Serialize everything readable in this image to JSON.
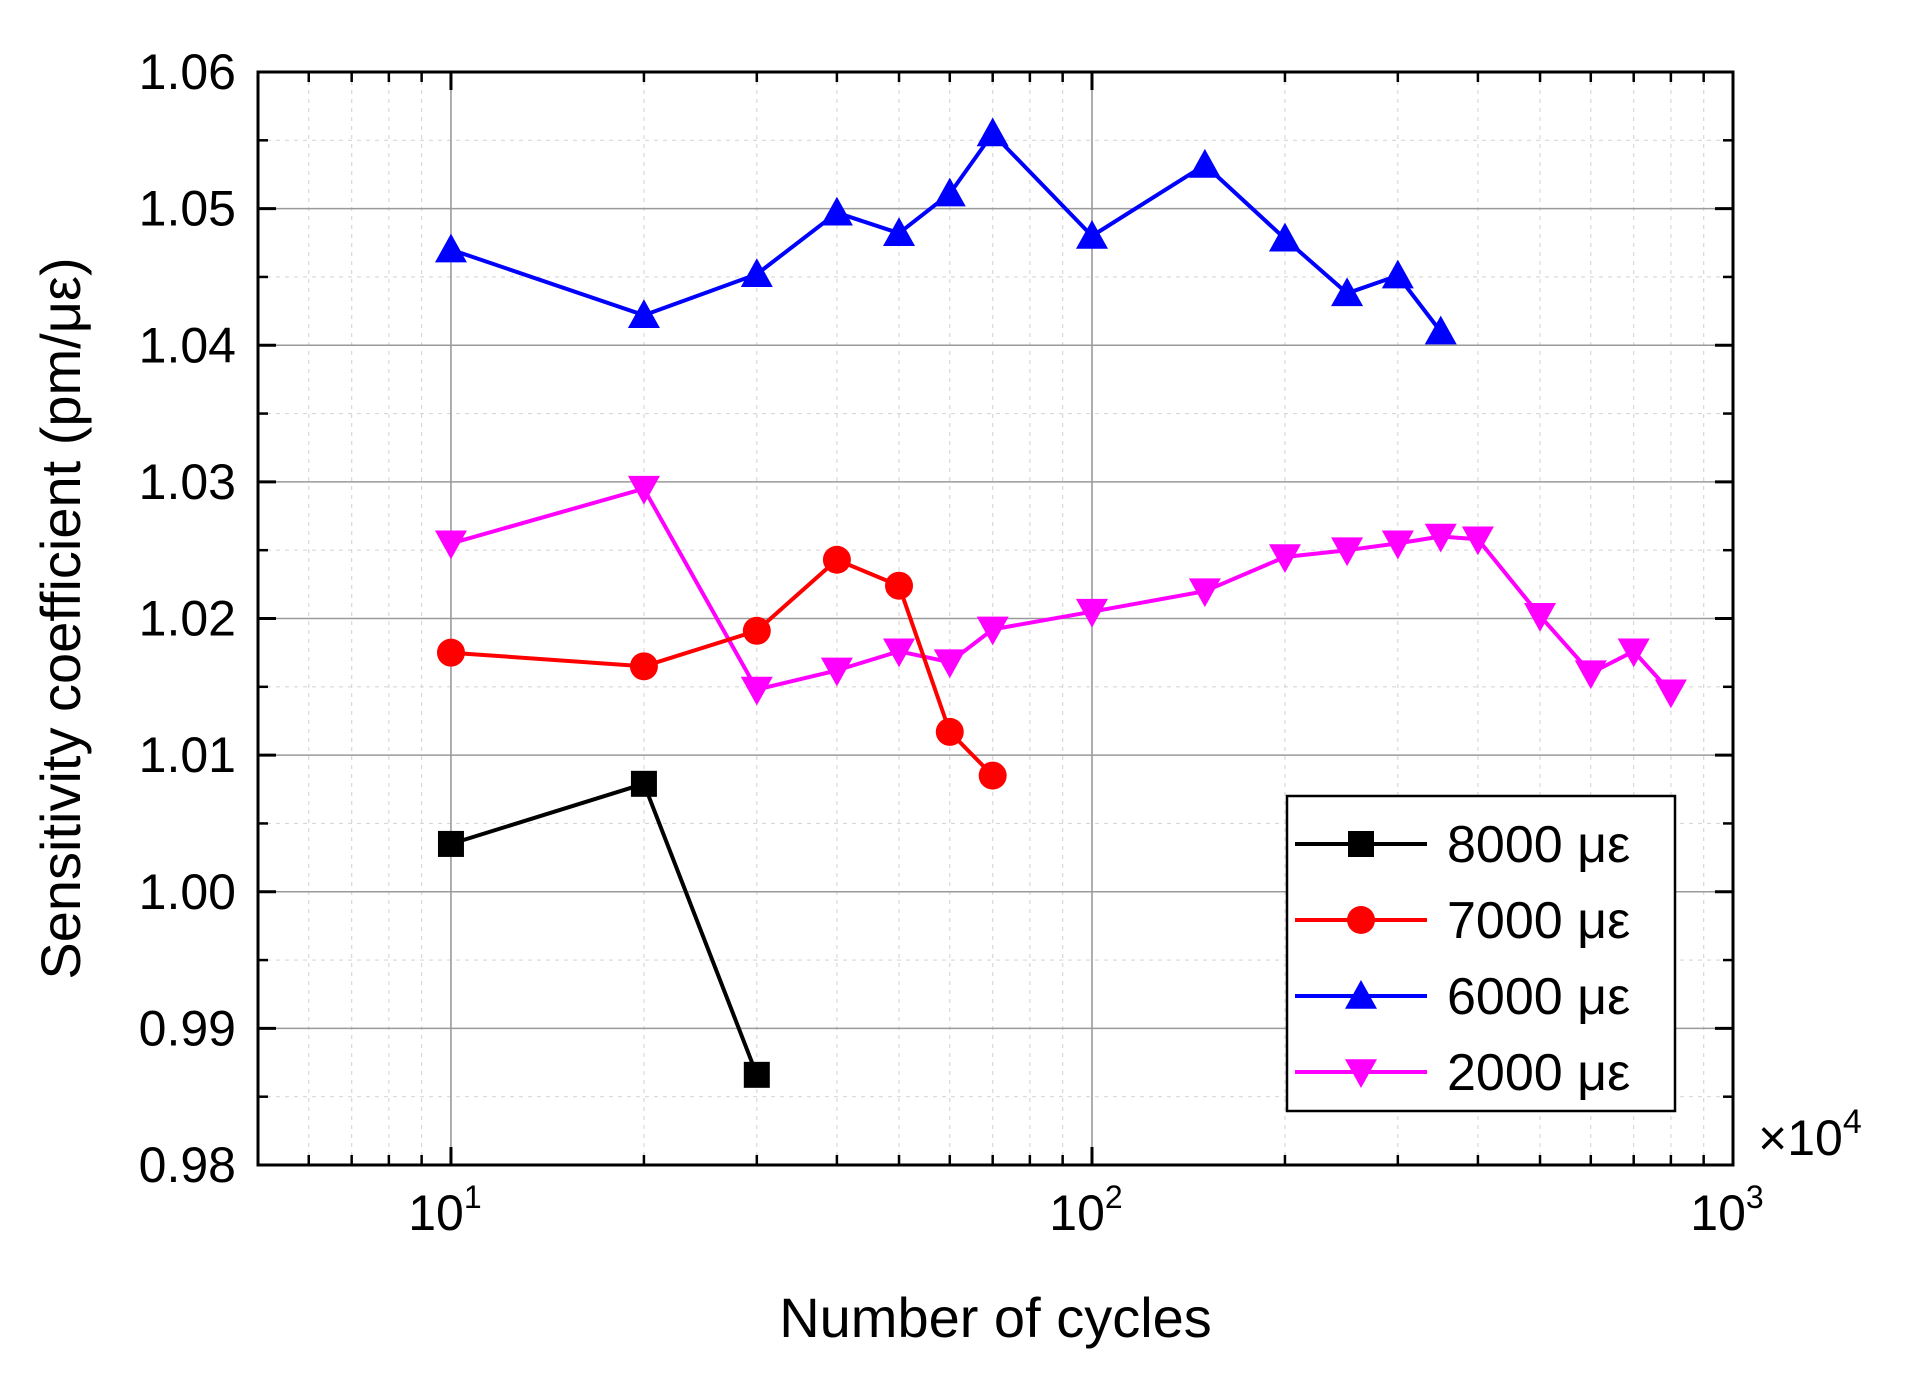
{
  "chart_data": {
    "type": "line",
    "title": "",
    "xlabel": "Number of cycles",
    "ylabel": "Sensitivity coefficient (pm/με)",
    "x_scale": "log",
    "x_multiplier_label": "×10",
    "x_multiplier_exponent": "4",
    "xlim": [
      5,
      1000
    ],
    "ylim": [
      0.98,
      1.06
    ],
    "x_ticks": [
      {
        "value": 10,
        "base": "10",
        "exp": "1"
      },
      {
        "value": 100,
        "base": "10",
        "exp": "2"
      },
      {
        "value": 1000,
        "base": "10",
        "exp": "3"
      }
    ],
    "y_ticks": [
      0.98,
      0.99,
      1.0,
      1.01,
      1.02,
      1.03,
      1.04,
      1.05,
      1.06
    ],
    "y_tick_labels": [
      "0.98",
      "0.99",
      "1.00",
      "1.01",
      "1.02",
      "1.03",
      "1.04",
      "1.05",
      "1.06"
    ],
    "grid": true,
    "legend_position": "bottom-right",
    "series": [
      {
        "name": "8000 με",
        "color": "#000000",
        "marker": "square",
        "x": [
          10,
          20,
          30
        ],
        "y": [
          1.0035,
          1.0079,
          0.9866
        ]
      },
      {
        "name": "7000 με",
        "color": "#ff0000",
        "marker": "circle",
        "x": [
          10,
          20,
          30,
          40,
          50,
          60,
          70
        ],
        "y": [
          1.0175,
          1.0165,
          1.0191,
          1.0243,
          1.0224,
          1.0117,
          1.0085
        ]
      },
      {
        "name": "6000 με",
        "color": "#0000ff",
        "marker": "triangle-up",
        "x": [
          10,
          20,
          30,
          40,
          50,
          60,
          70,
          100,
          150,
          200,
          250,
          300,
          350
        ],
        "y": [
          1.047,
          1.0422,
          1.0452,
          1.0497,
          1.0482,
          1.0511,
          1.0555,
          1.048,
          1.0532,
          1.0478,
          1.0438,
          1.0451,
          1.041
        ]
      },
      {
        "name": "2000 με",
        "color": "#ff00ff",
        "marker": "triangle-down",
        "x": [
          10,
          20,
          30,
          40,
          50,
          60,
          70,
          100,
          150,
          200,
          250,
          300,
          350,
          400,
          500,
          600,
          700,
          800
        ],
        "y": [
          1.0255,
          1.0295,
          1.0148,
          1.0162,
          1.0176,
          1.0168,
          1.0192,
          1.0205,
          1.022,
          1.0245,
          1.025,
          1.0255,
          1.026,
          1.0258,
          1.0202,
          1.016,
          1.0176,
          1.0146
        ]
      }
    ]
  }
}
